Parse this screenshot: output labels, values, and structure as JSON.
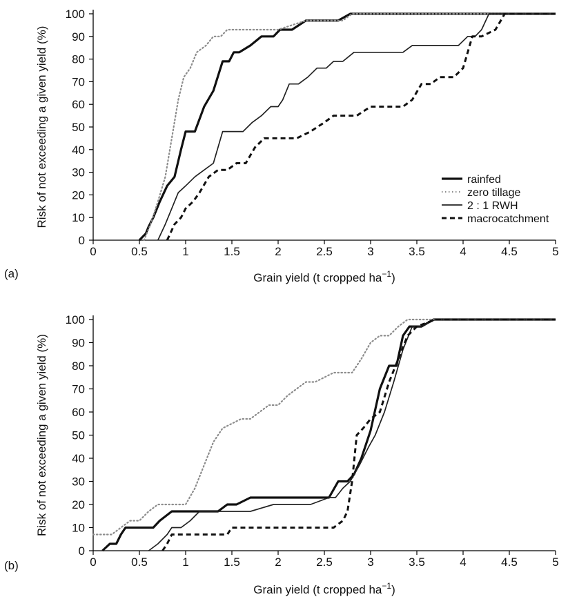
{
  "chart_data": [
    {
      "type": "line",
      "panel_label": "(a)",
      "xlabel": "Grain yield (t cropped ha",
      "xlabel_superscript": "−1",
      "xlabel_suffix": ")",
      "ylabel": "Risk of not exceeding a given yield (%)",
      "xlim": [
        0,
        5
      ],
      "ylim": [
        0,
        100
      ],
      "xticks": [
        "0",
        "0.5",
        "1",
        "1.5",
        "2",
        "2.5",
        "3",
        "3.5",
        "4",
        "4.5",
        "5"
      ],
      "yticks": [
        "0",
        "10",
        "20",
        "30",
        "40",
        "50",
        "60",
        "70",
        "80",
        "90",
        "100"
      ],
      "grid": false,
      "legend_position": "right",
      "series": [
        {
          "name": "rainfed",
          "style": "thick-solid",
          "x": [
            0.5,
            0.57,
            0.6,
            0.65,
            0.72,
            0.8,
            0.88,
            0.95,
            1.0,
            1.1,
            1.2,
            1.3,
            1.4,
            1.47,
            1.52,
            1.58,
            1.7,
            1.82,
            1.95,
            2.02,
            2.1,
            2.15,
            2.3,
            2.4,
            2.52,
            2.65,
            2.78,
            5.0
          ],
          "y": [
            0,
            3,
            6,
            10,
            17,
            24,
            28,
            40,
            48,
            48,
            59,
            66,
            79,
            79,
            83,
            83,
            86,
            90,
            90,
            93,
            93,
            93,
            97,
            97,
            97,
            97,
            100,
            100
          ]
        },
        {
          "name": "zero tillage",
          "style": "dotted",
          "x": [
            0.55,
            0.62,
            0.7,
            0.78,
            0.85,
            0.92,
            0.98,
            1.05,
            1.12,
            1.22,
            1.3,
            1.38,
            1.45,
            1.55,
            1.7,
            1.85,
            2.0,
            2.15,
            2.3,
            2.45,
            2.6,
            2.7,
            2.8,
            5.0
          ],
          "y": [
            0,
            7,
            17,
            28,
            45,
            62,
            72,
            76,
            83,
            86,
            90,
            90,
            93,
            93,
            93,
            93,
            93,
            95,
            97,
            97,
            97,
            97,
            100,
            100
          ]
        },
        {
          "name": "2 : 1 RWH",
          "style": "thin-solid",
          "x": [
            0.7,
            0.78,
            0.85,
            0.92,
            1.0,
            1.1,
            1.2,
            1.3,
            1.4,
            1.52,
            1.62,
            1.72,
            1.82,
            1.92,
            2.0,
            2.05,
            2.12,
            2.22,
            2.32,
            2.42,
            2.52,
            2.6,
            2.7,
            2.82,
            3.0,
            3.15,
            3.35,
            3.45,
            3.6,
            3.8,
            3.95,
            4.05,
            4.13,
            4.2,
            4.28,
            5.0
          ],
          "y": [
            0,
            7,
            14,
            21,
            24,
            28,
            31,
            34,
            48,
            48,
            48,
            52,
            55,
            59,
            59,
            62,
            69,
            69,
            72,
            76,
            76,
            79,
            79,
            83,
            83,
            83,
            83,
            86,
            86,
            86,
            86,
            90,
            90,
            93,
            100,
            100
          ]
        },
        {
          "name": "macrocatchment",
          "style": "thick-dashed",
          "x": [
            0.8,
            0.88,
            0.95,
            1.0,
            1.08,
            1.15,
            1.25,
            1.35,
            1.45,
            1.55,
            1.65,
            1.75,
            1.85,
            1.95,
            2.05,
            2.2,
            2.35,
            2.5,
            2.6,
            2.75,
            2.85,
            3.0,
            3.1,
            3.25,
            3.35,
            3.45,
            3.55,
            3.65,
            3.75,
            3.9,
            4.0,
            4.05,
            4.1,
            4.2,
            4.35,
            4.45,
            5.0
          ],
          "y": [
            0,
            7,
            10,
            14,
            17,
            21,
            28,
            31,
            31,
            34,
            34,
            41,
            45,
            45,
            45,
            45,
            48,
            52,
            55,
            55,
            55,
            59,
            59,
            59,
            59,
            62,
            69,
            69,
            72,
            72,
            76,
            83,
            90,
            90,
            93,
            100,
            100
          ]
        }
      ]
    },
    {
      "type": "line",
      "panel_label": "(b)",
      "xlabel": "Grain yield (t cropped ha",
      "xlabel_superscript": "−1",
      "xlabel_suffix": ")",
      "ylabel": "Risk of not exceeding a given yield (%)",
      "xlim": [
        0,
        5
      ],
      "ylim": [
        0,
        100
      ],
      "xticks": [
        "0",
        "0.5",
        "1",
        "1.5",
        "2",
        "2.5",
        "3",
        "3.5",
        "4",
        "4.5",
        "5"
      ],
      "yticks": [
        "0",
        "10",
        "20",
        "30",
        "40",
        "50",
        "60",
        "70",
        "80",
        "90",
        "100"
      ],
      "grid": false,
      "series": [
        {
          "name": "rainfed",
          "style": "thick-solid",
          "x": [
            0.1,
            0.18,
            0.25,
            0.3,
            0.35,
            0.5,
            0.65,
            0.72,
            0.85,
            1.0,
            1.2,
            1.35,
            1.45,
            1.55,
            1.7,
            2.0,
            2.3,
            2.55,
            2.65,
            2.75,
            2.82,
            2.9,
            3.0,
            3.1,
            3.2,
            3.28,
            3.35,
            3.42,
            3.55,
            3.68,
            5.0
          ],
          "y": [
            0,
            3,
            3,
            7,
            10,
            10,
            10,
            13,
            17,
            17,
            17,
            17,
            20,
            20,
            23,
            23,
            23,
            23,
            30,
            30,
            33,
            40,
            52,
            70,
            80,
            80,
            93,
            97,
            97,
            100,
            100
          ]
        },
        {
          "name": "zero tillage",
          "style": "dotted",
          "x": [
            0.0,
            0.1,
            0.2,
            0.3,
            0.4,
            0.5,
            0.6,
            0.7,
            0.8,
            0.9,
            1.0,
            1.1,
            1.2,
            1.3,
            1.4,
            1.5,
            1.6,
            1.7,
            1.8,
            1.9,
            2.0,
            2.1,
            2.2,
            2.3,
            2.4,
            2.5,
            2.6,
            2.7,
            2.8,
            2.9,
            3.0,
            3.1,
            3.2,
            3.3,
            3.4,
            3.5,
            3.7,
            5.0
          ],
          "y": [
            7,
            7,
            7,
            10,
            13,
            13,
            17,
            20,
            20,
            20,
            20,
            27,
            37,
            47,
            53,
            55,
            57,
            57,
            60,
            63,
            63,
            67,
            70,
            73,
            73,
            75,
            77,
            77,
            77,
            83,
            90,
            93,
            93,
            97,
            100,
            100,
            100,
            100
          ]
        },
        {
          "name": "2 : 1 RWH",
          "style": "thin-solid",
          "x": [
            0.6,
            0.7,
            0.8,
            0.85,
            0.95,
            1.05,
            1.15,
            1.25,
            1.35,
            1.5,
            1.7,
            1.95,
            2.1,
            2.35,
            2.55,
            2.62,
            2.7,
            2.78,
            2.88,
            2.98,
            3.05,
            3.15,
            3.25,
            3.35,
            3.45,
            3.55,
            3.7,
            5.0
          ],
          "y": [
            0,
            3,
            7,
            10,
            10,
            13,
            17,
            17,
            17,
            17,
            17,
            20,
            20,
            20,
            23,
            23,
            27,
            30,
            37,
            45,
            50,
            60,
            73,
            87,
            97,
            97,
            100,
            100
          ]
        },
        {
          "name": "macrocatchment",
          "style": "thick-dashed",
          "x": [
            0.75,
            0.8,
            0.85,
            1.0,
            1.2,
            1.35,
            1.45,
            1.5,
            1.7,
            1.9,
            2.1,
            2.3,
            2.5,
            2.6,
            2.7,
            2.75,
            2.8,
            2.85,
            2.92,
            3.0,
            3.1,
            3.2,
            3.3,
            3.4,
            3.5,
            3.7,
            5.0
          ],
          "y": [
            0,
            3,
            7,
            7,
            7,
            7,
            7,
            10,
            10,
            10,
            10,
            10,
            10,
            10,
            13,
            17,
            30,
            50,
            53,
            57,
            60,
            73,
            83,
            93,
            97,
            100,
            100
          ]
        }
      ]
    }
  ]
}
